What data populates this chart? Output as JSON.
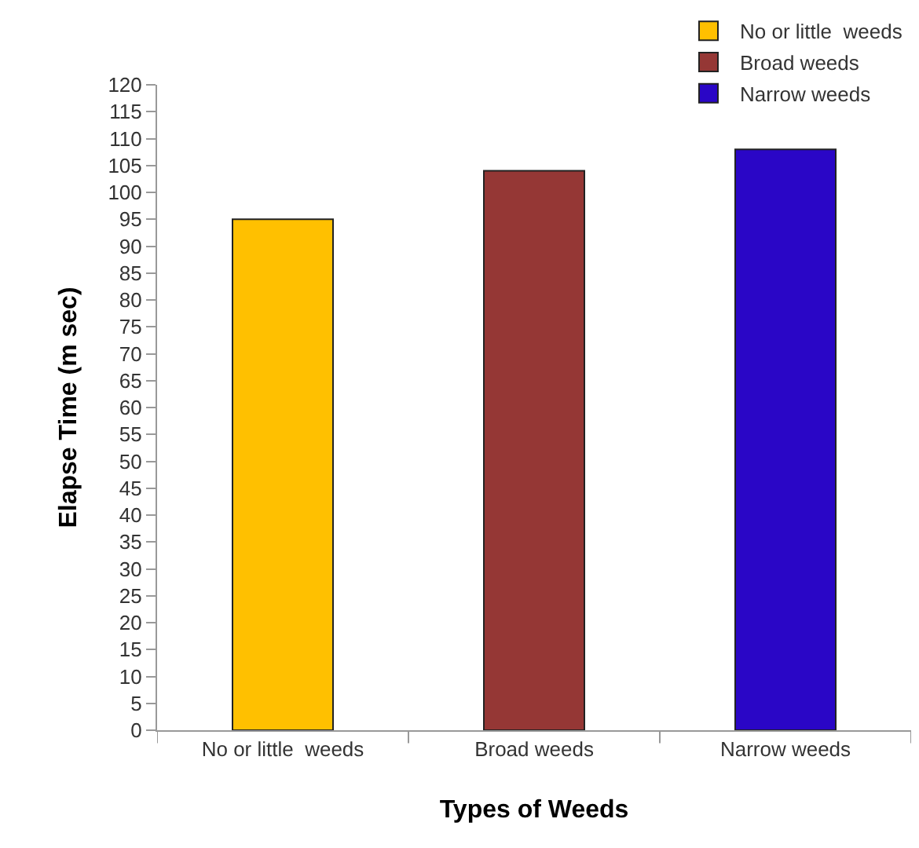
{
  "chart_data": {
    "type": "bar",
    "xlabel": "Types of Weeds",
    "ylabel": "Elapse Time (m sec)",
    "categories": [
      "No or little  weeds",
      "Broad weeds",
      "Narrow weeds"
    ],
    "series": [
      {
        "name": "No or little  weeds",
        "color": "#ffc000",
        "values": [
          95,
          null,
          null
        ]
      },
      {
        "name": "Broad weeds",
        "color": "#953735",
        "values": [
          null,
          104,
          null
        ]
      },
      {
        "name": "Narrow weeds",
        "color": "#2a06c6",
        "values": [
          null,
          null,
          108
        ]
      }
    ],
    "ylim": [
      0,
      120
    ],
    "yticks": [
      0,
      5,
      10,
      15,
      20,
      25,
      30,
      35,
      40,
      45,
      50,
      55,
      60,
      65,
      70,
      75,
      80,
      85,
      90,
      95,
      100,
      105,
      110,
      115,
      120
    ],
    "grid": false,
    "legend": "top right"
  }
}
